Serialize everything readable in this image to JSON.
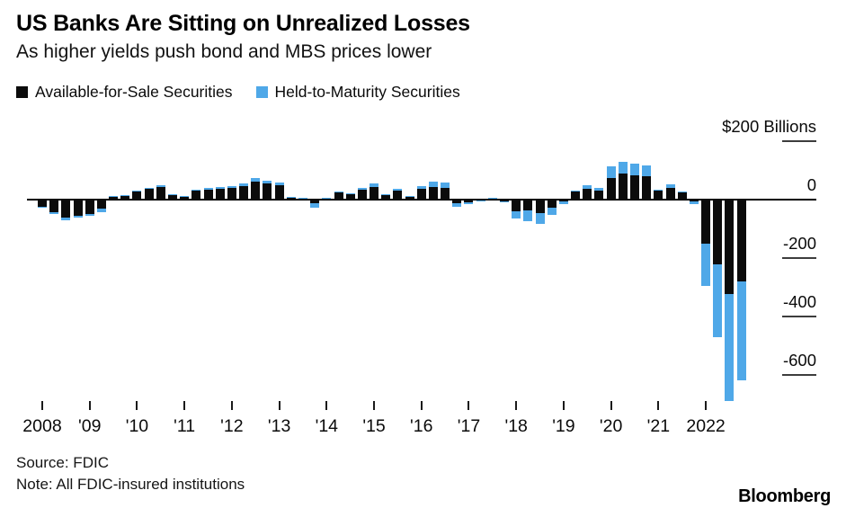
{
  "header": {
    "title": "US Banks Are Sitting on Unrealized Losses",
    "subtitle": "As higher yields push bond and MBS prices lower"
  },
  "legend": [
    {
      "label": "Available-for-Sale Securities",
      "color": "#0b0b0b"
    },
    {
      "label": "Held-to-Maturity Securities",
      "color": "#4fa8e8"
    }
  ],
  "footer": {
    "source": "Source: FDIC",
    "note": "Note: All FDIC-insured institutions",
    "brand": "Bloomberg"
  },
  "chart_data": {
    "type": "bar",
    "stacked": true,
    "title": "US Banks Are Sitting on Unrealized Losses",
    "subtitle": "As higher yields push bond and MBS prices lower",
    "unit": "Billions of US dollars",
    "legend_position": "top-left",
    "grid": "right-side tick dashes only",
    "y_axis": {
      "side": "right",
      "ticks": [
        200,
        0,
        -200,
        -400,
        -600
      ],
      "tick_labels": [
        "$200 Billions",
        "0",
        "-200",
        "-400",
        "-600"
      ],
      "range": [
        -760,
        270
      ]
    },
    "x_axis": {
      "year_tick_labels": [
        "2008",
        "'09",
        "'10",
        "'11",
        "'12",
        "'13",
        "'14",
        "'15",
        "'16",
        "'17",
        "'18",
        "'19",
        "'20",
        "'21",
        "2022"
      ],
      "note": "one bar per quarter, year tick at Q1"
    },
    "x": [
      "2008 Q1",
      "2008 Q2",
      "2008 Q3",
      "2008 Q4",
      "2009 Q1",
      "2009 Q2",
      "2009 Q3",
      "2009 Q4",
      "2010 Q1",
      "2010 Q2",
      "2010 Q3",
      "2010 Q4",
      "2011 Q1",
      "2011 Q2",
      "2011 Q3",
      "2011 Q4",
      "2012 Q1",
      "2012 Q2",
      "2012 Q3",
      "2012 Q4",
      "2013 Q1",
      "2013 Q2",
      "2013 Q3",
      "2013 Q4",
      "2014 Q1",
      "2014 Q2",
      "2014 Q3",
      "2014 Q4",
      "2015 Q1",
      "2015 Q2",
      "2015 Q3",
      "2015 Q4",
      "2016 Q1",
      "2016 Q2",
      "2016 Q3",
      "2016 Q4",
      "2017 Q1",
      "2017 Q2",
      "2017 Q3",
      "2017 Q4",
      "2018 Q1",
      "2018 Q2",
      "2018 Q3",
      "2018 Q4",
      "2019 Q1",
      "2019 Q2",
      "2019 Q3",
      "2019 Q4",
      "2020 Q1",
      "2020 Q2",
      "2020 Q3",
      "2020 Q4",
      "2021 Q1",
      "2021 Q2",
      "2021 Q3",
      "2021 Q4",
      "2022 Q1",
      "2022 Q2",
      "2022 Q3",
      "2022 Q4"
    ],
    "series": [
      {
        "name": "Available-for-Sale Securities",
        "color": "#0b0b0b",
        "values": [
          -25,
          -42,
          -60,
          -55,
          -48,
          -30,
          10,
          12,
          28,
          36,
          44,
          15,
          11,
          30,
          35,
          37,
          40,
          47,
          62,
          55,
          50,
          8,
          5,
          -13,
          5,
          25,
          18,
          33,
          42,
          15,
          30,
          9,
          36,
          42,
          40,
          -13,
          -9,
          -3,
          4,
          -5,
          -39,
          -37,
          -45,
          -28,
          -6,
          28,
          37,
          31,
          74,
          89,
          84,
          79,
          31,
          40,
          24,
          -5,
          -151,
          -220,
          -322,
          -279
        ]
      },
      {
        "name": "Held-to-Maturity Securities",
        "color": "#4fa8e8",
        "values": [
          -2,
          -6,
          -10,
          -8,
          -7,
          -12,
          2,
          3,
          4,
          5,
          6,
          3,
          2,
          5,
          6,
          7,
          7,
          9,
          12,
          10,
          9,
          2,
          1,
          -15,
          1,
          4,
          4,
          8,
          12,
          4,
          8,
          3,
          11,
          21,
          19,
          -12,
          -7,
          -3,
          1,
          -4,
          -26,
          -38,
          -38,
          -24,
          -8,
          3,
          12,
          9,
          39,
          41,
          39,
          38,
          2,
          12,
          3,
          -10,
          -144,
          -250,
          -368,
          -341
        ]
      }
    ]
  }
}
